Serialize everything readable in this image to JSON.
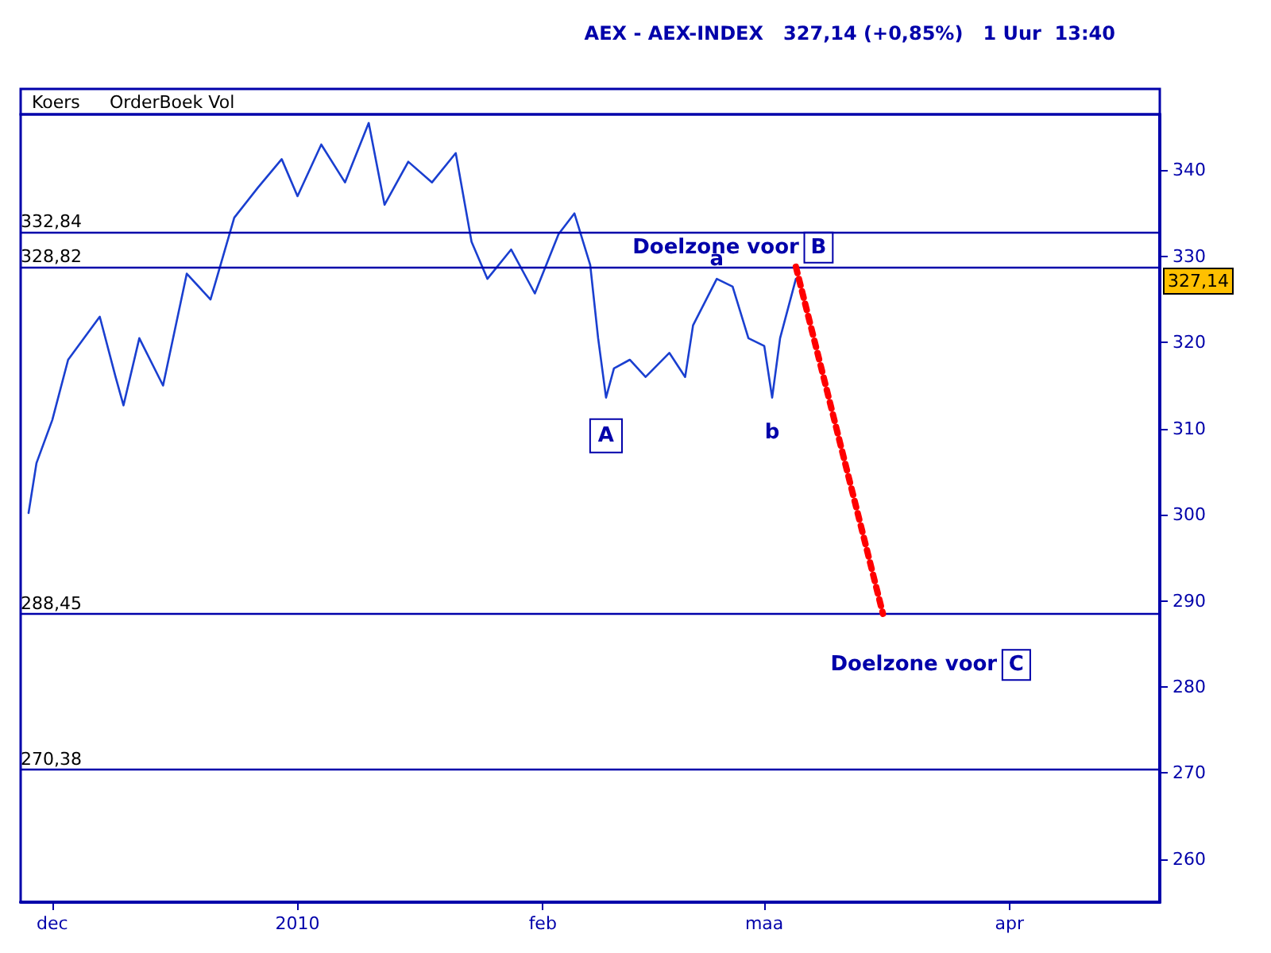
{
  "chart_data": {
    "type": "line",
    "title": "AEX - AEX-INDEX   327,14 (+0,85%)   1 Uur  13:40",
    "x": [
      "2009-11-28",
      "2009-11-29",
      "2009-12-01",
      "2009-12-03",
      "2009-12-07",
      "2009-12-09",
      "2009-12-10",
      "2009-12-12",
      "2009-12-15",
      "2009-12-18",
      "2009-12-21",
      "2009-12-24",
      "2009-12-27",
      "2009-12-30",
      "2010-01-01",
      "2010-01-04",
      "2010-01-07",
      "2010-01-10",
      "2010-01-12",
      "2010-01-15",
      "2010-01-18",
      "2010-01-21",
      "2010-01-23",
      "2010-01-25",
      "2010-01-28",
      "2010-01-31",
      "2010-02-03",
      "2010-02-05",
      "2010-02-07",
      "2010-02-08",
      "2010-02-09",
      "2010-02-10",
      "2010-02-12",
      "2010-02-14",
      "2010-02-17",
      "2010-02-19",
      "2010-02-20",
      "2010-02-23",
      "2010-02-25",
      "2010-02-27",
      "2010-03-01",
      "2010-03-02",
      "2010-03-03",
      "2010-03-05"
    ],
    "series": [
      {
        "color": "#1a3fd0",
        "values": [
          300.2,
          306,
          311,
          318,
          323,
          316,
          312.7,
          320.5,
          315,
          328,
          325,
          334.5,
          338,
          341.3,
          337,
          343,
          338.6,
          345.5,
          336,
          341,
          338.6,
          342,
          331.7,
          327.4,
          330.8,
          325.7,
          332.6,
          335,
          329,
          320.5,
          313.6,
          317,
          318,
          316,
          318.8,
          316,
          322,
          327.4,
          326.5,
          320.5,
          319.6,
          313.6,
          320.5,
          327.4
        ]
      },
      {
        "type": "line",
        "color": "#ff0000",
        "line_style": "dotted",
        "marker": "none",
        "x": [
          "2010-03-05",
          "2010-03-16"
        ],
        "values": [
          328.8,
          288.5
        ]
      }
    ],
    "xlim": [
      "2009-11-27",
      "2010-04-20"
    ],
    "xticks": [
      {
        "value": "2009-12-01",
        "label": "dec"
      },
      {
        "value": "2010-01-01",
        "label": "2010"
      },
      {
        "value": "2010-02-01",
        "label": "feb"
      },
      {
        "value": "2010-03-01",
        "label": "maa"
      },
      {
        "value": "2010-04-01",
        "label": "apr"
      }
    ],
    "ylim": [
      255,
      346.5
    ],
    "yticks": [
      260,
      270,
      280,
      290,
      300,
      310,
      320,
      330,
      340
    ],
    "grid": false,
    "marker": "none",
    "ref_lines": [
      {
        "axis": "y",
        "value": 332.84,
        "label": "332,84",
        "color": "#0000aa"
      },
      {
        "axis": "y",
        "value": 328.82,
        "label": "328,82",
        "color": "#0000aa"
      },
      {
        "axis": "y",
        "value": 288.45,
        "label": "288,45",
        "color": "#0000aa"
      },
      {
        "axis": "y",
        "value": 270.38,
        "label": "270,38",
        "color": "#0000aa"
      }
    ],
    "annotations": [
      "Koers",
      "OrderBoek Vol",
      {
        "text": "Doelzone voor B",
        "x": "2010-02-25",
        "y": 328.82
      },
      {
        "text": "A",
        "x": "2010-02-09",
        "y": 313.6
      },
      {
        "text": "a",
        "x": "2010-02-23",
        "y": 327.4
      },
      {
        "text": "b",
        "x": "2010-03-02",
        "y": 313.6
      },
      {
        "text": "Doelzone voor C",
        "x": "2010-03-22",
        "y": 288.45
      },
      {
        "text": "327,14",
        "y": 327.14
      }
    ]
  }
}
